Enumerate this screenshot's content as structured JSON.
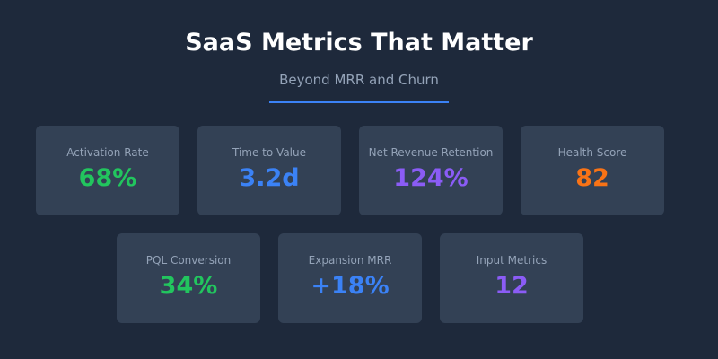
{
  "header": {
    "title": "SaaS Metrics That Matter",
    "subtitle": "Beyond MRR and Churn",
    "accent": "#3b82f6"
  },
  "cards": [
    {
      "label": "Activation Rate",
      "value": "68%",
      "color": "#22c55e"
    },
    {
      "label": "Time to Value",
      "value": "3.2d",
      "color": "#3b82f6"
    },
    {
      "label": "Net Revenue Retention",
      "value": "124%",
      "color": "#8b5cf6"
    },
    {
      "label": "Health Score",
      "value": "82",
      "color": "#f97316"
    },
    {
      "label": "PQL Conversion",
      "value": "34%",
      "color": "#22c55e"
    },
    {
      "label": "Expansion MRR",
      "value": "+18%",
      "color": "#3b82f6"
    },
    {
      "label": "Input Metrics",
      "value": "12",
      "color": "#8b5cf6"
    }
  ]
}
